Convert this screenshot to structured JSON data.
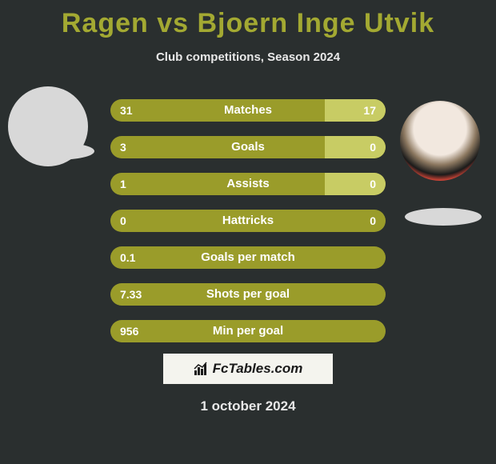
{
  "title": "Ragen vs Bjoern Inge Utvik",
  "subtitle": "Club competitions, Season 2024",
  "date": "1 october 2024",
  "brand": "FcTables.com",
  "colors": {
    "background": "#2a2f2f",
    "title": "#a3a932",
    "bar_base": "#9a9c2a",
    "bar_highlight": "#c8cc64",
    "text": "#ffffff",
    "shadow": "#d8d8d8",
    "brand_bg": "#f4f4ee"
  },
  "bars": [
    {
      "label": "Matches",
      "left": "31",
      "right": "17",
      "right_fill_pct": 22
    },
    {
      "label": "Goals",
      "left": "3",
      "right": "0",
      "right_fill_pct": 22
    },
    {
      "label": "Assists",
      "left": "1",
      "right": "0",
      "right_fill_pct": 22
    },
    {
      "label": "Hattricks",
      "left": "0",
      "right": "0",
      "right_fill_pct": 0
    },
    {
      "label": "Goals per match",
      "left": "0.1",
      "right": "",
      "right_fill_pct": 0
    },
    {
      "label": "Shots per goal",
      "left": "7.33",
      "right": "",
      "right_fill_pct": 0
    },
    {
      "label": "Min per goal",
      "left": "956",
      "right": "",
      "right_fill_pct": 0
    }
  ]
}
